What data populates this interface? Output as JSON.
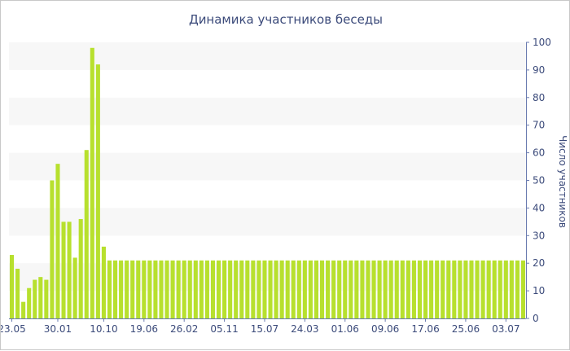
{
  "chart_data": {
    "type": "bar",
    "title": "Динамика участников беседы",
    "xlabel": "",
    "ylabel": "Число участников",
    "ylim": [
      0,
      100
    ],
    "yticks": [
      0,
      10,
      20,
      30,
      40,
      50,
      60,
      70,
      80,
      90,
      100
    ],
    "y_axis_side": "right",
    "grid": true,
    "legend": "none",
    "colors": {
      "bar": "#b7e02e",
      "band": "#f7f7f7",
      "text": "#3b4a7a",
      "axis": "#6a7bb0"
    },
    "x_tick_labels": [
      {
        "label": "23.05",
        "index": 0
      },
      {
        "label": "30.01",
        "index": 8
      },
      {
        "label": "10.10",
        "index": 16
      },
      {
        "label": "19.06",
        "index": 23
      },
      {
        "label": "26.02",
        "index": 30
      },
      {
        "label": "05.11",
        "index": 37
      },
      {
        "label": "15.07",
        "index": 44
      },
      {
        "label": "24.03",
        "index": 51
      },
      {
        "label": "01.06",
        "index": 58
      },
      {
        "label": "09.06",
        "index": 65
      },
      {
        "label": "17.06",
        "index": 72
      },
      {
        "label": "25.06",
        "index": 79
      },
      {
        "label": "03.07",
        "index": 86
      }
    ],
    "values": [
      23,
      18,
      6,
      11,
      14,
      15,
      14,
      50,
      56,
      35,
      35,
      22,
      36,
      61,
      98,
      92,
      26,
      21,
      21,
      21,
      21,
      21,
      21,
      21,
      21,
      21,
      21,
      21,
      21,
      21,
      21,
      21,
      21,
      21,
      21,
      21,
      21,
      21,
      21,
      21,
      21,
      21,
      21,
      21,
      21,
      21,
      21,
      21,
      21,
      21,
      21,
      21,
      21,
      21,
      21,
      21,
      21,
      21,
      21,
      21,
      21,
      21,
      21,
      21,
      21,
      21,
      21,
      21,
      21,
      21,
      21,
      21,
      21,
      21,
      21,
      21,
      21,
      21,
      21,
      21,
      21,
      21,
      21,
      21,
      21,
      21,
      21,
      21,
      21,
      21
    ]
  }
}
